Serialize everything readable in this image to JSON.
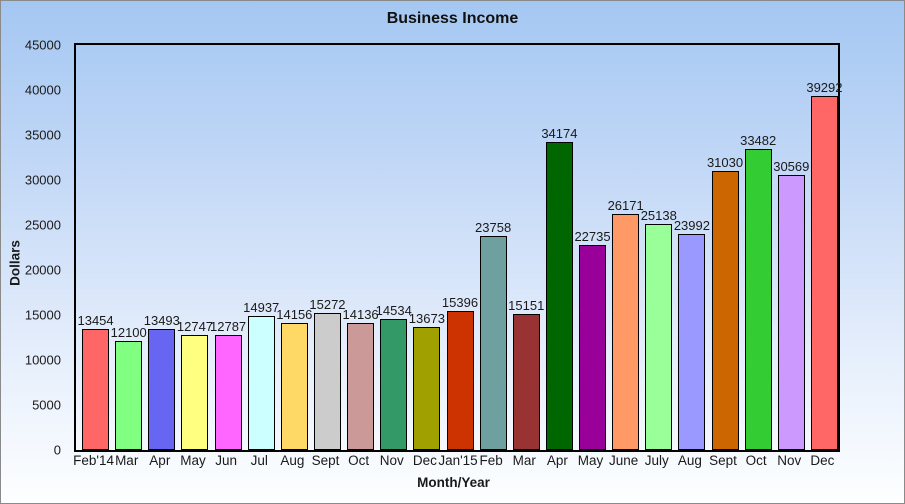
{
  "chart_data": {
    "type": "bar",
    "title": "Business Income",
    "xlabel": "Month/Year",
    "ylabel": "Dollars",
    "ylim": [
      0,
      45000
    ],
    "yticks": [
      0,
      5000,
      10000,
      15000,
      20000,
      25000,
      30000,
      35000,
      40000,
      45000
    ],
    "grid": false,
    "legend": "none",
    "data_labels": true,
    "categories": [
      "Feb'14",
      "Mar",
      "Apr",
      "May",
      "Jun",
      "Jul",
      "Aug",
      "Sept",
      "Oct",
      "Nov",
      "Dec",
      "Jan'15",
      "Feb",
      "Mar",
      "Apr",
      "May",
      "June",
      "July",
      "Aug",
      "Sept",
      "Oct",
      "Nov",
      "Dec"
    ],
    "values": [
      13454,
      12100,
      13493,
      12747,
      12787,
      14937,
      14156,
      15272,
      14136,
      14534,
      13673,
      15396,
      23758,
      15151,
      34174,
      22735,
      26171,
      25138,
      23992,
      31030,
      33482,
      30569,
      39292
    ],
    "bar_colors": [
      "#FF6666",
      "#80FF80",
      "#6666F2",
      "#FFFF80",
      "#FF66FF",
      "#CCFFFF",
      "#FFD966",
      "#CCCCCC",
      "#CC9999",
      "#339966",
      "#A0A000",
      "#CC3300",
      "#6FA0A0",
      "#993333",
      "#006600",
      "#990099",
      "#FF9966",
      "#99FF99",
      "#9999FF",
      "#CC6600",
      "#33CC33",
      "#CC99FF",
      "#FF6666"
    ]
  },
  "colors": {
    "bar_border": "#000000",
    "plot_border": "#000000",
    "text": "#1a1a1a",
    "background_top": "#a4c7f2",
    "background_bottom": "#fdfeff"
  }
}
